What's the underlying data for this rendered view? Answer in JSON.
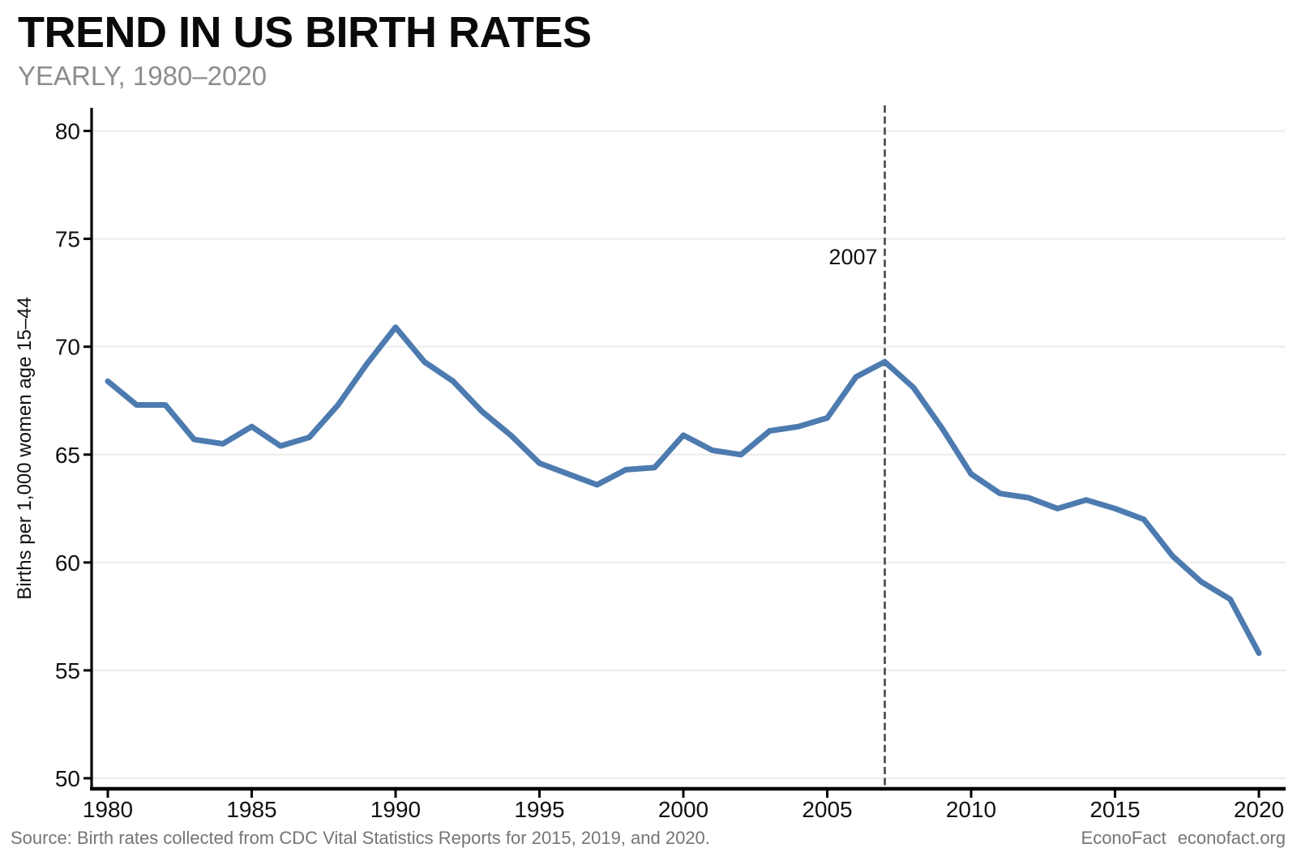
{
  "header": {
    "title": "TREND IN US BIRTH RATES",
    "subtitle": "YEARLY, 1980–2020"
  },
  "footer": {
    "source": "Source: Birth rates collected from CDC Vital Statistics Reports for 2015, 2019, and 2020.",
    "brand": "EconoFact",
    "brand_url": "econofact.org"
  },
  "colors": {
    "line": "#4d7bb0",
    "annotation_line": "#4d4d4d",
    "annotation_text": "#111111",
    "grid": "#ececec",
    "axis": "#000000",
    "tick_text": "#111111",
    "subtitle_text": "#8d8d8d",
    "footer_text": "#757575"
  },
  "chart_data": {
    "type": "line",
    "title": "TREND IN US BIRTH RATES",
    "subtitle": "YEARLY, 1980–2020",
    "xlabel": "",
    "ylabel": "Births per 1,000 women age 15–44",
    "xlim": [
      1980,
      2020
    ],
    "ylim": [
      50,
      80
    ],
    "x_ticks": [
      1980,
      1985,
      1990,
      1995,
      2000,
      2005,
      2010,
      2015,
      2020
    ],
    "y_ticks": [
      50,
      55,
      60,
      65,
      70,
      75,
      80
    ],
    "grid": "horizontal",
    "legend": "none",
    "annotation": {
      "type": "vertical_dashed_line",
      "x": 2007,
      "label": "2007"
    },
    "series": [
      {
        "name": "Births per 1,000 women age 15–44",
        "x": [
          1980,
          1981,
          1982,
          1983,
          1984,
          1985,
          1986,
          1987,
          1988,
          1989,
          1990,
          1991,
          1992,
          1993,
          1994,
          1995,
          1996,
          1997,
          1998,
          1999,
          2000,
          2001,
          2002,
          2003,
          2004,
          2005,
          2006,
          2007,
          2008,
          2009,
          2010,
          2011,
          2012,
          2013,
          2014,
          2015,
          2016,
          2017,
          2018,
          2019,
          2020
        ],
        "values": [
          68.4,
          67.3,
          67.3,
          65.7,
          65.5,
          66.3,
          65.4,
          65.8,
          67.3,
          69.2,
          70.9,
          69.3,
          68.4,
          67.0,
          65.9,
          64.6,
          64.1,
          63.6,
          64.3,
          64.4,
          65.9,
          65.2,
          65.0,
          66.1,
          66.3,
          66.7,
          68.6,
          69.3,
          68.1,
          66.2,
          64.1,
          63.2,
          63.0,
          62.5,
          62.9,
          62.5,
          62.0,
          60.3,
          59.1,
          58.3,
          55.8
        ]
      }
    ]
  }
}
